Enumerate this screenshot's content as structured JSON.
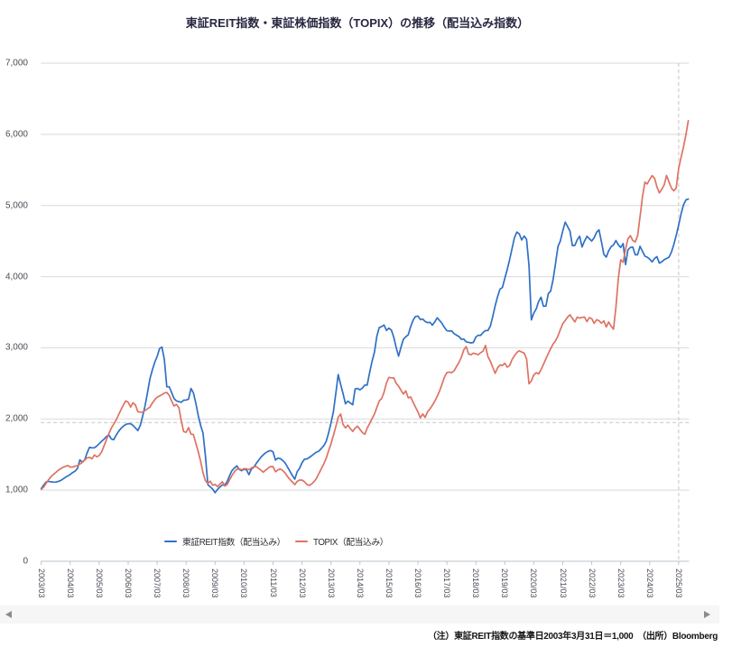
{
  "title": "東証REIT指数・東証株価指数（TOPIX）の推移（配当込み指数）",
  "footnote": "（注）東証REIT指数の基準日2003年3月31日＝1,000　（出所）Bloomberg",
  "nav": {
    "prev_icon": "left-triangle",
    "next_icon": "right-triangle"
  },
  "chart_data": {
    "type": "line",
    "title": "東証REIT指数・東証株価指数（TOPIX）の推移（配当込み指数）",
    "xlabel": "",
    "ylabel": "",
    "ylim": [
      0,
      7000
    ],
    "y_ticks": [
      0,
      1000,
      2000,
      3000,
      4000,
      5000,
      6000,
      7000
    ],
    "y_tick_labels": [
      "0",
      "1,000",
      "2,000",
      "3,000",
      "4,000",
      "5,000",
      "6,000",
      "7,000"
    ],
    "x_tick_labels": [
      "2003/03",
      "2004/03",
      "2005/03",
      "2006/03",
      "2007/03",
      "2008/03",
      "2009/03",
      "2010/03",
      "2011/03",
      "2012/03",
      "2013/03",
      "2014/03",
      "2015/03",
      "2016/03",
      "2017/03",
      "2018/03",
      "2019/03",
      "2020/03",
      "2021/03",
      "2022/03",
      "2023/03",
      "2024/03",
      "2025/03"
    ],
    "grid": true,
    "legend_position": "bottom",
    "reference_lines": {
      "h_value": 1950,
      "v_at_label": "2025/03"
    },
    "x": [
      "2003/03",
      "2003/04",
      "2003/05",
      "2003/06",
      "2003/07",
      "2003/08",
      "2003/09",
      "2003/10",
      "2003/11",
      "2003/12",
      "2004/01",
      "2004/02",
      "2004/03",
      "2004/04",
      "2004/05",
      "2004/06",
      "2004/07",
      "2004/08",
      "2004/09",
      "2004/10",
      "2004/11",
      "2004/12",
      "2005/01",
      "2005/02",
      "2005/03",
      "2005/04",
      "2005/05",
      "2005/06",
      "2005/07",
      "2005/08",
      "2005/09",
      "2005/10",
      "2005/11",
      "2005/12",
      "2006/01",
      "2006/02",
      "2006/03",
      "2006/04",
      "2006/05",
      "2006/06",
      "2006/07",
      "2006/08",
      "2006/09",
      "2006/10",
      "2006/11",
      "2006/12",
      "2007/01",
      "2007/02",
      "2007/03",
      "2007/04",
      "2007/05",
      "2007/06",
      "2007/07",
      "2007/08",
      "2007/09",
      "2007/10",
      "2007/11",
      "2007/12",
      "2008/01",
      "2008/02",
      "2008/03",
      "2008/04",
      "2008/05",
      "2008/06",
      "2008/07",
      "2008/08",
      "2008/09",
      "2008/10",
      "2008/11",
      "2008/12",
      "2009/01",
      "2009/02",
      "2009/03",
      "2009/04",
      "2009/05",
      "2009/06",
      "2009/07",
      "2009/08",
      "2009/09",
      "2009/10",
      "2009/11",
      "2009/12",
      "2010/01",
      "2010/02",
      "2010/03",
      "2010/04",
      "2010/05",
      "2010/06",
      "2010/07",
      "2010/08",
      "2010/09",
      "2010/10",
      "2010/11",
      "2010/12",
      "2011/01",
      "2011/02",
      "2011/03",
      "2011/04",
      "2011/05",
      "2011/06",
      "2011/07",
      "2011/08",
      "2011/09",
      "2011/10",
      "2011/11",
      "2011/12",
      "2012/01",
      "2012/02",
      "2012/03",
      "2012/04",
      "2012/05",
      "2012/06",
      "2012/07",
      "2012/08",
      "2012/09",
      "2012/10",
      "2012/11",
      "2012/12",
      "2013/01",
      "2013/02",
      "2013/03",
      "2013/04",
      "2013/05",
      "2013/06",
      "2013/07",
      "2013/08",
      "2013/09",
      "2013/10",
      "2013/11",
      "2013/12",
      "2014/01",
      "2014/02",
      "2014/03",
      "2014/04",
      "2014/05",
      "2014/06",
      "2014/07",
      "2014/08",
      "2014/09",
      "2014/10",
      "2014/11",
      "2014/12",
      "2015/01",
      "2015/02",
      "2015/03",
      "2015/04",
      "2015/05",
      "2015/06",
      "2015/07",
      "2015/08",
      "2015/09",
      "2015/10",
      "2015/11",
      "2015/12",
      "2016/01",
      "2016/02",
      "2016/03",
      "2016/04",
      "2016/05",
      "2016/06",
      "2016/07",
      "2016/08",
      "2016/09",
      "2016/10",
      "2016/11",
      "2016/12",
      "2017/01",
      "2017/02",
      "2017/03",
      "2017/04",
      "2017/05",
      "2017/06",
      "2017/07",
      "2017/08",
      "2017/09",
      "2017/10",
      "2017/11",
      "2017/12",
      "2018/01",
      "2018/02",
      "2018/03",
      "2018/04",
      "2018/05",
      "2018/06",
      "2018/07",
      "2018/08",
      "2018/09",
      "2018/10",
      "2018/11",
      "2018/12",
      "2019/01",
      "2019/02",
      "2019/03",
      "2019/04",
      "2019/05",
      "2019/06",
      "2019/07",
      "2019/08",
      "2019/09",
      "2019/10",
      "2019/11",
      "2019/12",
      "2020/01",
      "2020/02",
      "2020/03",
      "2020/04",
      "2020/05",
      "2020/06",
      "2020/07",
      "2020/08",
      "2020/09",
      "2020/10",
      "2020/11",
      "2020/12",
      "2021/01",
      "2021/02",
      "2021/03",
      "2021/04",
      "2021/05",
      "2021/06",
      "2021/07",
      "2021/08",
      "2021/09",
      "2021/10",
      "2021/11",
      "2021/12",
      "2022/01",
      "2022/02",
      "2022/03",
      "2022/04",
      "2022/05",
      "2022/06",
      "2022/07",
      "2022/08",
      "2022/09",
      "2022/10",
      "2022/11",
      "2022/12",
      "2023/01",
      "2023/02",
      "2023/03",
      "2023/04",
      "2023/05",
      "2023/06",
      "2023/07",
      "2023/08",
      "2023/09",
      "2023/10",
      "2023/11",
      "2023/12",
      "2024/01",
      "2024/02",
      "2024/03",
      "2024/04",
      "2024/05",
      "2024/06",
      "2024/07",
      "2024/08",
      "2024/09",
      "2024/10",
      "2024/11",
      "2024/12",
      "2025/01",
      "2025/02",
      "2025/03",
      "2025/04",
      "2025/05",
      "2025/06",
      "2025/07"
    ],
    "series": [
      {
        "name": "東証REIT指数（配当込み）",
        "color": "#2e70c6",
        "values": [
          1019,
          1071,
          1115,
          1124,
          1117,
          1112,
          1114,
          1121,
          1134,
          1157,
          1180,
          1199,
          1220,
          1247,
          1267,
          1303,
          1425,
          1392,
          1426,
          1523,
          1602,
          1594,
          1595,
          1620,
          1652,
          1687,
          1716,
          1753,
          1775,
          1719,
          1708,
          1770,
          1823,
          1868,
          1898,
          1922,
          1932,
          1932,
          1910,
          1874,
          1836,
          1909,
          2043,
          2185,
          2367,
          2564,
          2690,
          2795,
          2877,
          2989,
          3010,
          2836,
          2452,
          2451,
          2370,
          2288,
          2253,
          2243,
          2234,
          2263,
          2266,
          2279,
          2429,
          2370,
          2227,
          2049,
          1908,
          1803,
          1479,
          1076,
          1046,
          1014,
          964,
          1009,
          1045,
          1072,
          1073,
          1120,
          1205,
          1274,
          1311,
          1340,
          1290,
          1272,
          1294,
          1284,
          1218,
          1294,
          1322,
          1372,
          1417,
          1463,
          1498,
          1525,
          1546,
          1556,
          1537,
          1422,
          1450,
          1443,
          1417,
          1382,
          1323,
          1266,
          1206,
          1154,
          1261,
          1306,
          1384,
          1434,
          1438,
          1458,
          1483,
          1510,
          1533,
          1549,
          1585,
          1625,
          1684,
          1801,
          1943,
          2103,
          2364,
          2624,
          2485,
          2353,
          2213,
          2251,
          2224,
          2199,
          2421,
          2428,
          2410,
          2433,
          2478,
          2475,
          2652,
          2809,
          2942,
          3162,
          3286,
          3299,
          3320,
          3244,
          3277,
          3249,
          3147,
          3004,
          2883,
          3011,
          3118,
          3155,
          3183,
          3299,
          3388,
          3441,
          3445,
          3398,
          3403,
          3371,
          3353,
          3358,
          3318,
          3364,
          3422,
          3383,
          3341,
          3286,
          3241,
          3235,
          3238,
          3198,
          3178,
          3158,
          3120,
          3123,
          3084,
          3076,
          3069,
          3075,
          3151,
          3176,
          3174,
          3215,
          3242,
          3242,
          3306,
          3439,
          3590,
          3720,
          3826,
          3846,
          3976,
          4102,
          4242,
          4394,
          4549,
          4627,
          4600,
          4514,
          4572,
          4523,
          4153,
          3392,
          3487,
          3547,
          3652,
          3710,
          3584,
          3586,
          3763,
          3797,
          3960,
          4186,
          4424,
          4501,
          4642,
          4765,
          4704,
          4639,
          4435,
          4440,
          4520,
          4568,
          4417,
          4501,
          4567,
          4534,
          4501,
          4548,
          4624,
          4658,
          4494,
          4314,
          4275,
          4361,
          4420,
          4446,
          4508,
          4449,
          4409,
          4465,
          4169,
          4378,
          4411,
          4414,
          4306,
          4308,
          4426,
          4356,
          4287,
          4274,
          4246,
          4207,
          4256,
          4281,
          4190,
          4209,
          4238,
          4255,
          4273,
          4345,
          4455,
          4581,
          4724,
          4882,
          5010,
          5078,
          5090
        ]
      },
      {
        "name": "TOPIX（配当込み）",
        "color": "#de7263",
        "values": [
          1010,
          1043,
          1094,
          1145,
          1187,
          1220,
          1248,
          1277,
          1301,
          1320,
          1334,
          1345,
          1325,
          1324,
          1337,
          1343,
          1366,
          1389,
          1422,
          1455,
          1460,
          1441,
          1494,
          1469,
          1486,
          1537,
          1623,
          1704,
          1795,
          1871,
          1928,
          1983,
          2057,
          2129,
          2196,
          2253,
          2236,
          2167,
          2227,
          2198,
          2103,
          2095,
          2098,
          2118,
          2143,
          2166,
          2224,
          2270,
          2305,
          2324,
          2341,
          2364,
          2373,
          2331,
          2251,
          2181,
          2205,
          2158,
          1969,
          1822,
          1814,
          1878,
          1788,
          1780,
          1664,
          1541,
          1405,
          1244,
          1132,
          1093,
          1126,
          1068,
          1081,
          1049,
          1086,
          1117,
          1058,
          1078,
          1145,
          1207,
          1258,
          1294,
          1300,
          1285,
          1302,
          1299,
          1288,
          1310,
          1327,
          1332,
          1306,
          1279,
          1252,
          1283,
          1311,
          1332,
          1330,
          1258,
          1283,
          1297,
          1277,
          1242,
          1189,
          1150,
          1115,
          1076,
          1124,
          1141,
          1141,
          1118,
          1080,
          1066,
          1086,
          1120,
          1166,
          1233,
          1300,
          1367,
          1447,
          1551,
          1648,
          1769,
          1893,
          2024,
          2069,
          1923,
          1874,
          1912,
          1865,
          1825,
          1872,
          1898,
          1854,
          1808,
          1785,
          1871,
          1937,
          2004,
          2071,
          2161,
          2253,
          2289,
          2377,
          2507,
          2584,
          2577,
          2576,
          2502,
          2461,
          2402,
          2351,
          2394,
          2296,
          2309,
          2234,
          2167,
          2100,
          2016,
          2071,
          2021,
          2101,
          2142,
          2191,
          2250,
          2317,
          2396,
          2491,
          2587,
          2652,
          2659,
          2650,
          2677,
          2736,
          2794,
          2870,
          2970,
          3017,
          2912,
          2903,
          2926,
          2914,
          2904,
          2930,
          2954,
          3033,
          2875,
          2811,
          2727,
          2642,
          2718,
          2761,
          2751,
          2784,
          2727,
          2752,
          2833,
          2890,
          2935,
          2958,
          2941,
          2927,
          2844,
          2494,
          2535,
          2619,
          2650,
          2634,
          2692,
          2766,
          2845,
          2921,
          2989,
          3054,
          3099,
          3167,
          3255,
          3338,
          3383,
          3431,
          3465,
          3413,
          3363,
          3431,
          3416,
          3428,
          3432,
          3368,
          3424,
          3410,
          3344,
          3395,
          3381,
          3345,
          3379,
          3292,
          3363,
          3305,
          3261,
          3570,
          3967,
          4237,
          4201,
          4388,
          4531,
          4576,
          4508,
          4486,
          4574,
          4840,
          5119,
          5327,
          5302,
          5365,
          5420,
          5383,
          5263,
          5178,
          5226,
          5289,
          5423,
          5331,
          5244,
          5205,
          5248,
          5520,
          5677,
          5825,
          5990,
          6192
        ]
      }
    ]
  }
}
